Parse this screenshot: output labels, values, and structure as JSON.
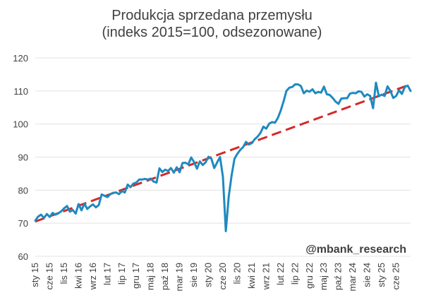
{
  "chart_data": {
    "type": "line",
    "title": "Produkcja sprzedana przemysłu",
    "subtitle": "(indeks 2015=100, odsezonowane)",
    "xlabel": "",
    "ylabel": "",
    "ylim": [
      60,
      120
    ],
    "yticks": [
      60,
      70,
      80,
      90,
      100,
      110,
      120
    ],
    "grid": "horizontal",
    "xtick_labels": [
      "sty 15",
      "cze 15",
      "lis 15",
      "kwi 16",
      "wrz 16",
      "lut 17",
      "lip 17",
      "gru 17",
      "maj 18",
      "paź 18",
      "mar 19",
      "sie 19",
      "sty 20",
      "cze 20",
      "lis 20",
      "kwi 21",
      "wrz 21",
      "lut 22",
      "lip 22",
      "gru 22",
      "maj 23",
      "paź 23",
      "mar 24",
      "sie 24",
      "sty 25",
      "cze 25"
    ],
    "colors": {
      "series": "#1f8ac0",
      "trend": "#d42a2a",
      "grid": "#e3e3e3",
      "text": "#404040"
    },
    "series": [
      {
        "values": [
          70.8,
          72.0,
          72.6,
          71.6,
          72.8,
          71.9,
          73.1,
          72.6,
          73.0,
          73.6,
          74.5,
          75.2,
          73.5,
          74.0,
          72.9,
          75.8,
          73.9,
          75.9,
          74.3,
          75.1,
          75.7,
          74.8,
          75.5,
          78.7,
          78.3,
          77.9,
          78.8,
          79.2,
          79.3,
          78.8,
          79.7,
          79.3,
          81.7,
          80.9,
          82.0,
          82.3,
          83.2,
          83.2,
          83.4,
          83.2,
          83.5,
          82.6,
          82.3,
          86.6,
          85.5,
          86.2,
          85.8,
          86.7,
          85.3,
          86.9,
          85.4,
          88.2,
          88.3,
          87.8,
          89.9,
          88.5,
          86.5,
          88.7,
          87.6,
          88.4,
          90.1,
          89.5,
          86.7,
          88.4,
          90.0,
          84.0,
          67.6,
          78.0,
          84.5,
          89.5,
          91.0,
          92.2,
          93.0,
          94.6,
          93.8,
          94.2,
          95.4,
          96.2,
          97.3,
          99.2,
          98.6,
          100.1,
          100.6,
          100.4,
          101.8,
          104.0,
          106.8,
          110.0,
          111.0,
          111.2,
          112.0,
          112.0,
          111.5,
          109.3,
          110.1,
          109.8,
          110.5,
          109.3,
          109.7,
          109.5,
          111.3,
          109.0,
          108.8,
          107.9,
          106.8,
          106.1,
          107.7,
          107.8,
          107.8,
          109.2,
          109.4,
          109.3,
          109.9,
          109.7,
          108.3,
          109.0,
          108.5,
          104.8,
          112.5,
          108.4,
          108.9,
          108.5,
          111.4,
          110.0,
          107.9,
          108.5,
          110.2,
          109.1,
          111.2,
          111.6,
          110.0
        ]
      },
      {
        "values": [
          70.5,
          112.0
        ]
      }
    ]
  }
}
